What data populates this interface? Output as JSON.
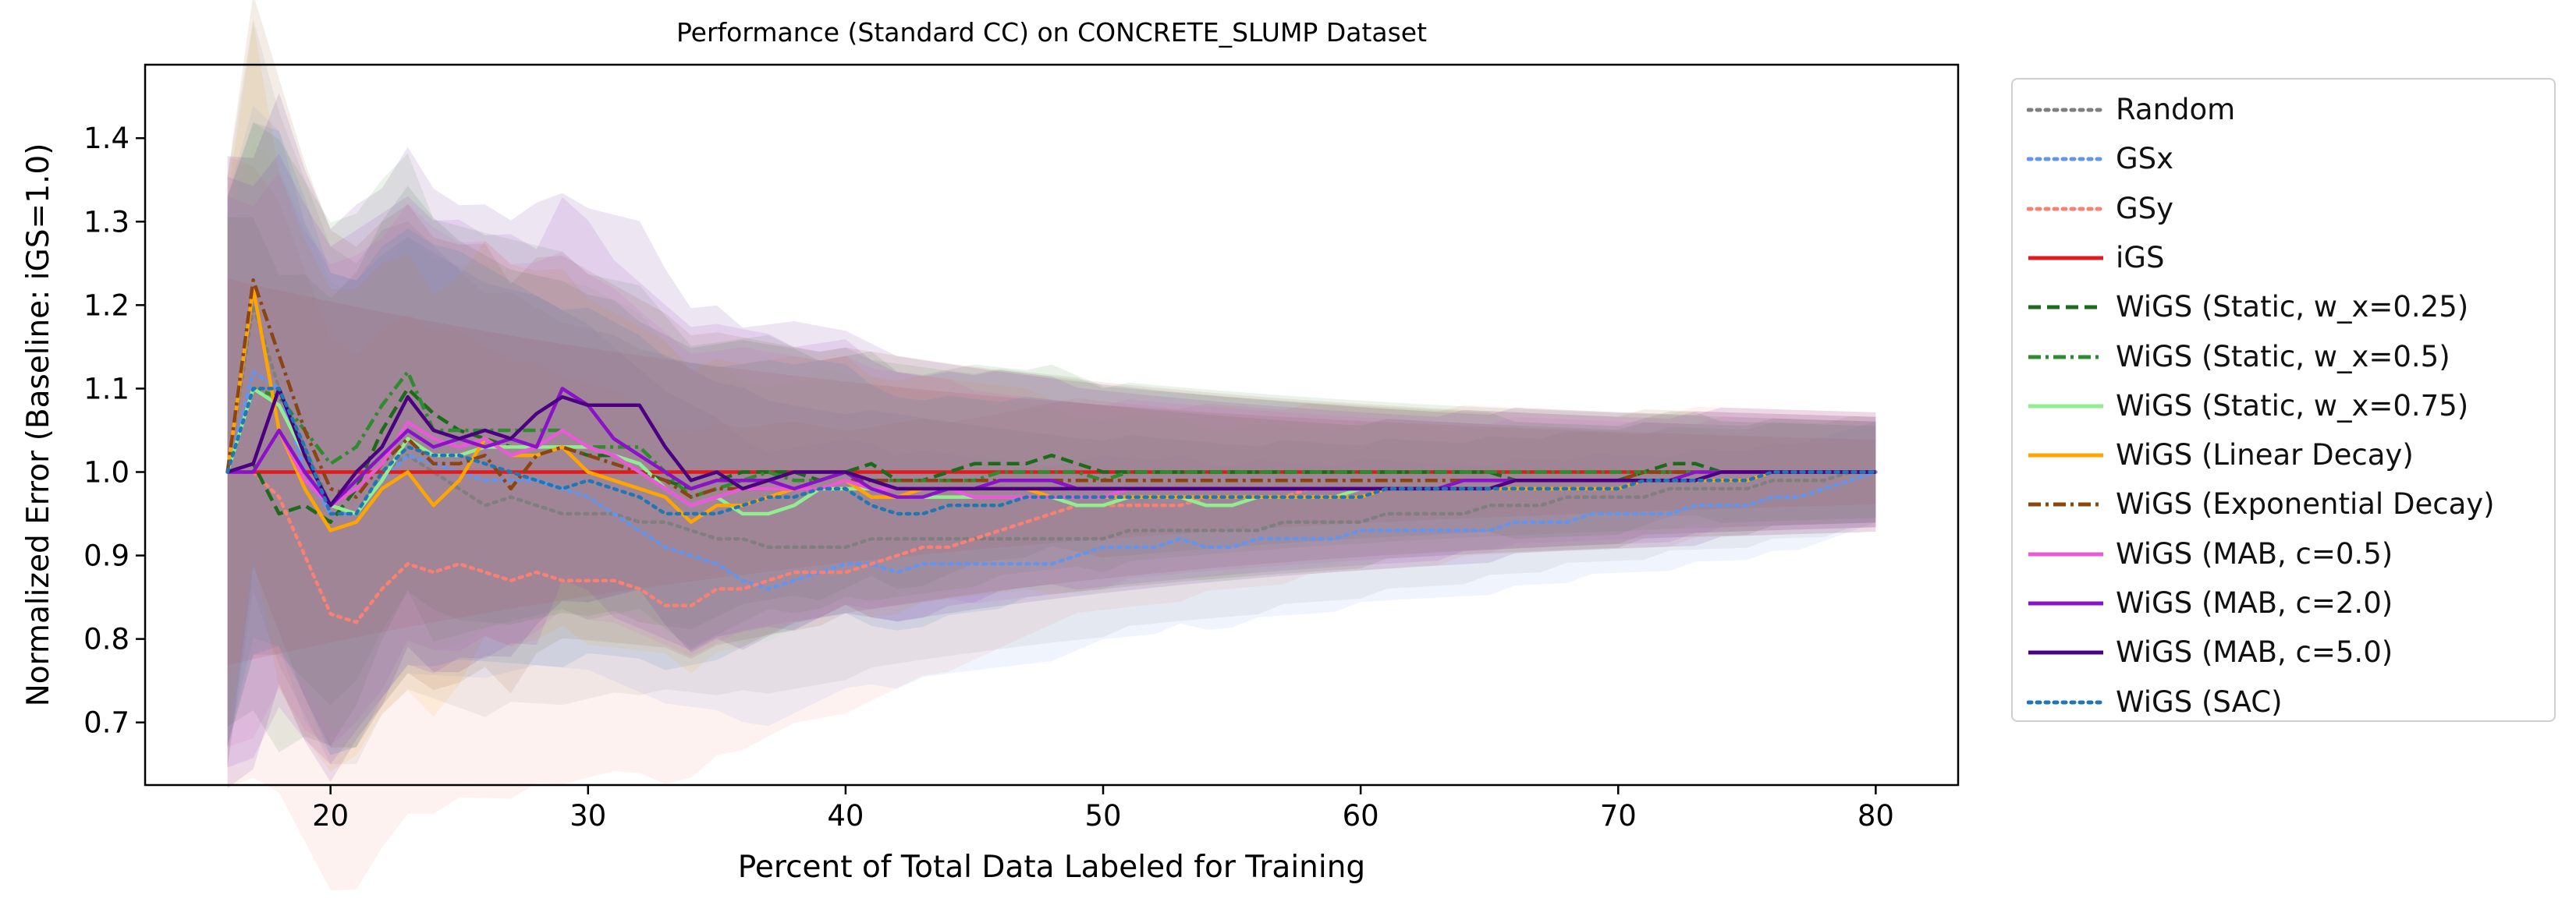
{
  "chart_data": {
    "type": "line",
    "title": "Performance (Standard CC) on CONCRETE_SLUMP Dataset",
    "xlabel": "Percent of Total Data Labeled for Training",
    "ylabel": "Normalized Error (Baseline: iGS=1.0)",
    "xlim": [
      12.8,
      83.2
    ],
    "ylim": [
      0.625,
      1.488
    ],
    "xticks": [
      20,
      30,
      40,
      50,
      60,
      70,
      80
    ],
    "yticks": [
      0.7,
      0.8,
      0.9,
      1.0,
      1.1,
      1.2,
      1.3,
      1.4
    ],
    "grid": false,
    "legend_position": "outside right",
    "x": [
      16,
      17,
      18,
      19,
      20,
      21,
      22,
      23,
      24,
      25,
      26,
      27,
      28,
      29,
      30,
      31,
      32,
      33,
      34,
      35,
      36,
      37,
      38,
      39,
      40,
      41,
      42,
      43,
      44,
      45,
      46,
      47,
      48,
      49,
      50,
      51,
      52,
      53,
      54,
      55,
      56,
      57,
      58,
      59,
      60,
      61,
      62,
      63,
      64,
      65,
      66,
      67,
      68,
      69,
      70,
      71,
      72,
      73,
      74,
      75,
      76,
      77,
      78,
      79,
      80
    ],
    "series": [
      {
        "name": "Random",
        "color": "#7f7f7f",
        "dash": "dotted",
        "values": [
          1.0,
          1.2,
          1.1,
          1.03,
          0.96,
          0.95,
          1.0,
          1.02,
          1.0,
          0.98,
          0.96,
          0.97,
          0.96,
          0.95,
          0.95,
          0.95,
          0.94,
          0.94,
          0.93,
          0.92,
          0.92,
          0.91,
          0.91,
          0.91,
          0.91,
          0.92,
          0.92,
          0.92,
          0.92,
          0.92,
          0.92,
          0.92,
          0.92,
          0.92,
          0.92,
          0.93,
          0.93,
          0.93,
          0.93,
          0.93,
          0.93,
          0.94,
          0.94,
          0.94,
          0.94,
          0.95,
          0.95,
          0.95,
          0.95,
          0.96,
          0.96,
          0.96,
          0.97,
          0.97,
          0.97,
          0.97,
          0.98,
          0.98,
          0.98,
          0.98,
          0.99,
          0.99,
          0.99,
          1.0,
          1.0
        ],
        "band": 0.12
      },
      {
        "name": "GSx",
        "color": "#6495ed",
        "dash": "dotted",
        "values": [
          1.0,
          1.12,
          1.1,
          1.0,
          0.95,
          0.95,
          0.99,
          1.02,
          1.01,
          1.0,
          0.99,
          0.99,
          0.99,
          0.98,
          0.97,
          0.95,
          0.93,
          0.91,
          0.9,
          0.89,
          0.87,
          0.86,
          0.87,
          0.88,
          0.89,
          0.89,
          0.88,
          0.89,
          0.89,
          0.89,
          0.89,
          0.89,
          0.89,
          0.9,
          0.91,
          0.91,
          0.91,
          0.92,
          0.91,
          0.91,
          0.92,
          0.92,
          0.92,
          0.92,
          0.93,
          0.93,
          0.93,
          0.93,
          0.93,
          0.93,
          0.94,
          0.94,
          0.94,
          0.95,
          0.95,
          0.95,
          0.95,
          0.96,
          0.96,
          0.96,
          0.97,
          0.97,
          0.98,
          0.99,
          1.0
        ],
        "band": 0.11
      },
      {
        "name": "GSy",
        "color": "#fa8072",
        "dash": "dotted",
        "values": [
          1.0,
          1.0,
          0.97,
          0.9,
          0.83,
          0.82,
          0.86,
          0.89,
          0.88,
          0.89,
          0.88,
          0.87,
          0.88,
          0.87,
          0.87,
          0.87,
          0.86,
          0.84,
          0.84,
          0.86,
          0.86,
          0.87,
          0.88,
          0.88,
          0.88,
          0.89,
          0.9,
          0.91,
          0.91,
          0.92,
          0.93,
          0.94,
          0.95,
          0.96,
          0.96,
          0.96,
          0.96,
          0.96,
          0.97,
          0.97,
          0.97,
          0.97,
          0.98,
          0.98,
          0.98,
          0.98,
          0.98,
          0.98,
          0.99,
          0.99,
          0.99,
          0.99,
          0.99,
          0.99,
          0.99,
          0.99,
          0.99,
          1.0,
          1.0,
          1.0,
          1.0,
          1.0,
          1.0,
          1.0,
          1.0
        ],
        "band": 0.13
      },
      {
        "name": "iGS",
        "color": "#e31a1c",
        "dash": "solid",
        "values": [
          1.0,
          1.0,
          1.0,
          1.0,
          1.0,
          1.0,
          1.0,
          1.0,
          1.0,
          1.0,
          1.0,
          1.0,
          1.0,
          1.0,
          1.0,
          1.0,
          1.0,
          1.0,
          1.0,
          1.0,
          1.0,
          1.0,
          1.0,
          1.0,
          1.0,
          1.0,
          1.0,
          1.0,
          1.0,
          1.0,
          1.0,
          1.0,
          1.0,
          1.0,
          1.0,
          1.0,
          1.0,
          1.0,
          1.0,
          1.0,
          1.0,
          1.0,
          1.0,
          1.0,
          1.0,
          1.0,
          1.0,
          1.0,
          1.0,
          1.0,
          1.0,
          1.0,
          1.0,
          1.0,
          1.0,
          1.0,
          1.0,
          1.0,
          1.0,
          1.0,
          1.0,
          1.0,
          1.0,
          1.0,
          1.0
        ],
        "band": 0.07
      },
      {
        "name": "WiGS (Static, w_x=0.25)",
        "color": "#1b6b1b",
        "dash": "dashed",
        "values": [
          1.0,
          1.01,
          0.95,
          0.96,
          0.94,
          0.98,
          1.05,
          1.1,
          1.07,
          1.05,
          1.04,
          1.03,
          1.03,
          1.03,
          1.02,
          1.02,
          1.0,
          0.99,
          0.98,
          0.99,
          1.0,
          1.0,
          1.0,
          0.99,
          1.0,
          1.01,
          0.99,
          0.99,
          1.0,
          1.01,
          1.01,
          1.01,
          1.02,
          1.01,
          1.0,
          1.0,
          1.0,
          1.0,
          1.0,
          1.0,
          1.0,
          1.0,
          1.0,
          1.0,
          1.0,
          1.0,
          1.0,
          1.0,
          1.0,
          1.0,
          0.99,
          0.99,
          0.99,
          0.99,
          0.99,
          1.0,
          1.01,
          1.01,
          1.0,
          1.0,
          1.0,
          1.0,
          1.0,
          1.0,
          1.0
        ],
        "band": 0.1
      },
      {
        "name": "WiGS (Static, w_x=0.5)",
        "color": "#2e8b2e",
        "dash": "dashdot",
        "values": [
          1.0,
          1.1,
          1.09,
          1.05,
          1.01,
          1.03,
          1.08,
          1.12,
          1.05,
          1.05,
          1.05,
          1.05,
          1.05,
          1.05,
          1.03,
          1.03,
          1.03,
          1.0,
          0.97,
          0.98,
          0.99,
          1.0,
          0.99,
          0.99,
          1.0,
          0.99,
          0.99,
          0.99,
          0.99,
          0.99,
          1.0,
          1.0,
          1.0,
          1.0,
          0.99,
          1.0,
          1.0,
          1.0,
          1.0,
          1.0,
          1.0,
          1.0,
          1.0,
          1.0,
          1.0,
          1.0,
          1.0,
          1.0,
          1.0,
          1.0,
          1.0,
          1.0,
          1.0,
          1.0,
          1.0,
          1.0,
          1.0,
          1.0,
          1.0,
          1.0,
          1.0,
          1.0,
          1.0,
          1.0,
          1.0
        ],
        "band": 0.11
      },
      {
        "name": "WiGS (Static, w_x=0.75)",
        "color": "#90ee90",
        "dash": "solid",
        "values": [
          1.0,
          1.1,
          1.08,
          1.02,
          0.96,
          0.95,
          0.99,
          1.04,
          1.02,
          1.02,
          1.03,
          1.03,
          1.03,
          1.03,
          1.03,
          1.02,
          1.01,
          0.98,
          0.96,
          0.97,
          0.95,
          0.95,
          0.96,
          0.98,
          0.98,
          0.98,
          0.97,
          0.97,
          0.97,
          0.97,
          0.97,
          0.97,
          0.97,
          0.96,
          0.96,
          0.97,
          0.97,
          0.97,
          0.96,
          0.96,
          0.97,
          0.97,
          0.97,
          0.97,
          0.98,
          0.98,
          0.98,
          0.98,
          0.98,
          0.98,
          0.99,
          0.99,
          0.99,
          0.99,
          0.99,
          0.99,
          0.99,
          1.0,
          1.0,
          1.0,
          1.0,
          1.0,
          1.0,
          1.0,
          1.0
        ],
        "band": 0.1
      },
      {
        "name": "WiGS (Linear Decay)",
        "color": "#ffa500",
        "dash": "solid",
        "values": [
          1.0,
          1.22,
          1.05,
          0.98,
          0.93,
          0.94,
          0.98,
          1.0,
          0.96,
          0.99,
          1.04,
          1.02,
          1.02,
          1.03,
          1.0,
          0.99,
          0.98,
          0.97,
          0.94,
          0.96,
          0.96,
          0.97,
          0.98,
          0.98,
          0.99,
          0.97,
          0.97,
          0.98,
          0.98,
          0.98,
          0.98,
          0.98,
          0.97,
          0.97,
          0.97,
          0.97,
          0.97,
          0.97,
          0.97,
          0.97,
          0.97,
          0.97,
          0.97,
          0.97,
          0.97,
          0.98,
          0.98,
          0.98,
          0.98,
          0.98,
          0.98,
          0.98,
          0.98,
          0.98,
          0.98,
          0.99,
          0.99,
          0.99,
          0.99,
          0.99,
          1.0,
          1.0,
          1.0,
          1.0,
          1.0
        ],
        "band": 0.11
      },
      {
        "name": "WiGS (Exponential Decay)",
        "color": "#8b4513",
        "dash": "dashdot",
        "values": [
          1.0,
          1.23,
          1.14,
          1.05,
          0.98,
          0.97,
          1.01,
          1.04,
          1.01,
          1.01,
          1.02,
          0.98,
          1.02,
          1.03,
          1.02,
          1.01,
          1.0,
          0.99,
          0.97,
          0.98,
          0.98,
          0.98,
          0.98,
          0.98,
          0.99,
          0.99,
          0.99,
          0.99,
          0.99,
          0.99,
          0.99,
          0.99,
          0.99,
          0.99,
          0.99,
          0.99,
          0.99,
          0.99,
          0.99,
          0.99,
          0.99,
          0.99,
          0.99,
          0.99,
          0.99,
          0.99,
          0.99,
          0.99,
          0.99,
          0.99,
          0.99,
          0.99,
          0.99,
          0.99,
          0.99,
          1.0,
          1.0,
          1.0,
          1.0,
          1.0,
          1.0,
          1.0,
          1.0,
          1.0,
          1.0
        ],
        "band": 0.12
      },
      {
        "name": "WiGS (MAB, c=0.5)",
        "color": "#e85ad8",
        "dash": "solid",
        "values": [
          1.0,
          1.0,
          1.05,
          0.99,
          0.96,
          0.98,
          1.01,
          1.06,
          1.04,
          1.03,
          1.04,
          1.02,
          1.03,
          1.05,
          1.03,
          1.02,
          1.0,
          0.98,
          0.96,
          0.97,
          0.98,
          0.98,
          0.98,
          0.98,
          0.99,
          0.98,
          0.98,
          0.98,
          0.98,
          0.97,
          0.97,
          0.97,
          0.97,
          0.97,
          0.97,
          0.98,
          0.98,
          0.98,
          0.98,
          0.98,
          0.98,
          0.98,
          0.98,
          0.98,
          0.98,
          0.98,
          0.98,
          0.98,
          0.98,
          0.98,
          0.99,
          0.99,
          0.99,
          0.99,
          0.99,
          0.99,
          0.99,
          0.99,
          1.0,
          1.0,
          1.0,
          1.0,
          1.0,
          1.0,
          1.0
        ],
        "band": 0.11
      },
      {
        "name": "WiGS (MAB, c=2.0)",
        "color": "#8a12c9",
        "dash": "solid",
        "values": [
          1.0,
          1.0,
          1.05,
          1.0,
          0.96,
          0.99,
          1.02,
          1.05,
          1.03,
          1.04,
          1.03,
          1.04,
          1.03,
          1.1,
          1.08,
          1.04,
          1.02,
          1.0,
          0.98,
          0.99,
          0.99,
          0.99,
          0.98,
          0.99,
          1.0,
          0.98,
          0.97,
          0.97,
          0.98,
          0.98,
          0.99,
          0.99,
          0.99,
          0.98,
          0.98,
          0.98,
          0.98,
          0.98,
          0.98,
          0.98,
          0.98,
          0.98,
          0.98,
          0.98,
          0.98,
          0.98,
          0.98,
          0.98,
          0.99,
          0.99,
          0.99,
          0.99,
          0.99,
          0.99,
          0.99,
          0.99,
          0.99,
          1.0,
          1.0,
          1.0,
          1.0,
          1.0,
          1.0,
          1.0,
          1.0
        ],
        "band": 0.12
      },
      {
        "name": "WiGS (MAB, c=5.0)",
        "color": "#4b0082",
        "dash": "solid",
        "values": [
          1.0,
          1.01,
          1.1,
          1.02,
          0.96,
          1.0,
          1.03,
          1.09,
          1.05,
          1.04,
          1.05,
          1.04,
          1.07,
          1.09,
          1.08,
          1.08,
          1.08,
          1.03,
          0.99,
          1.0,
          0.98,
          0.99,
          1.0,
          1.0,
          1.0,
          0.99,
          0.98,
          0.98,
          0.98,
          0.98,
          0.98,
          0.98,
          0.98,
          0.98,
          0.98,
          0.98,
          0.98,
          0.98,
          0.98,
          0.98,
          0.98,
          0.98,
          0.98,
          0.98,
          0.98,
          0.98,
          0.98,
          0.98,
          0.98,
          0.98,
          0.99,
          0.99,
          0.99,
          0.99,
          0.99,
          0.99,
          0.99,
          0.99,
          1.0,
          1.0,
          1.0,
          1.0,
          1.0,
          1.0,
          1.0
        ],
        "band": 0.13
      },
      {
        "name": "WiGS (SAC)",
        "color": "#1f77b4",
        "dash": "dotted",
        "values": [
          1.0,
          1.1,
          1.1,
          1.03,
          0.95,
          0.95,
          1.0,
          1.03,
          1.02,
          1.02,
          1.01,
          1.0,
          0.99,
          0.98,
          0.99,
          0.98,
          0.97,
          0.95,
          0.95,
          0.95,
          0.96,
          0.97,
          0.97,
          0.98,
          0.98,
          0.96,
          0.95,
          0.95,
          0.96,
          0.96,
          0.96,
          0.97,
          0.97,
          0.97,
          0.97,
          0.97,
          0.97,
          0.97,
          0.97,
          0.97,
          0.97,
          0.97,
          0.97,
          0.97,
          0.97,
          0.98,
          0.98,
          0.98,
          0.98,
          0.98,
          0.98,
          0.98,
          0.98,
          0.98,
          0.98,
          0.99,
          0.99,
          0.99,
          0.99,
          0.99,
          1.0,
          1.0,
          1.0,
          1.0,
          1.0
        ],
        "band": 0.11
      }
    ]
  }
}
